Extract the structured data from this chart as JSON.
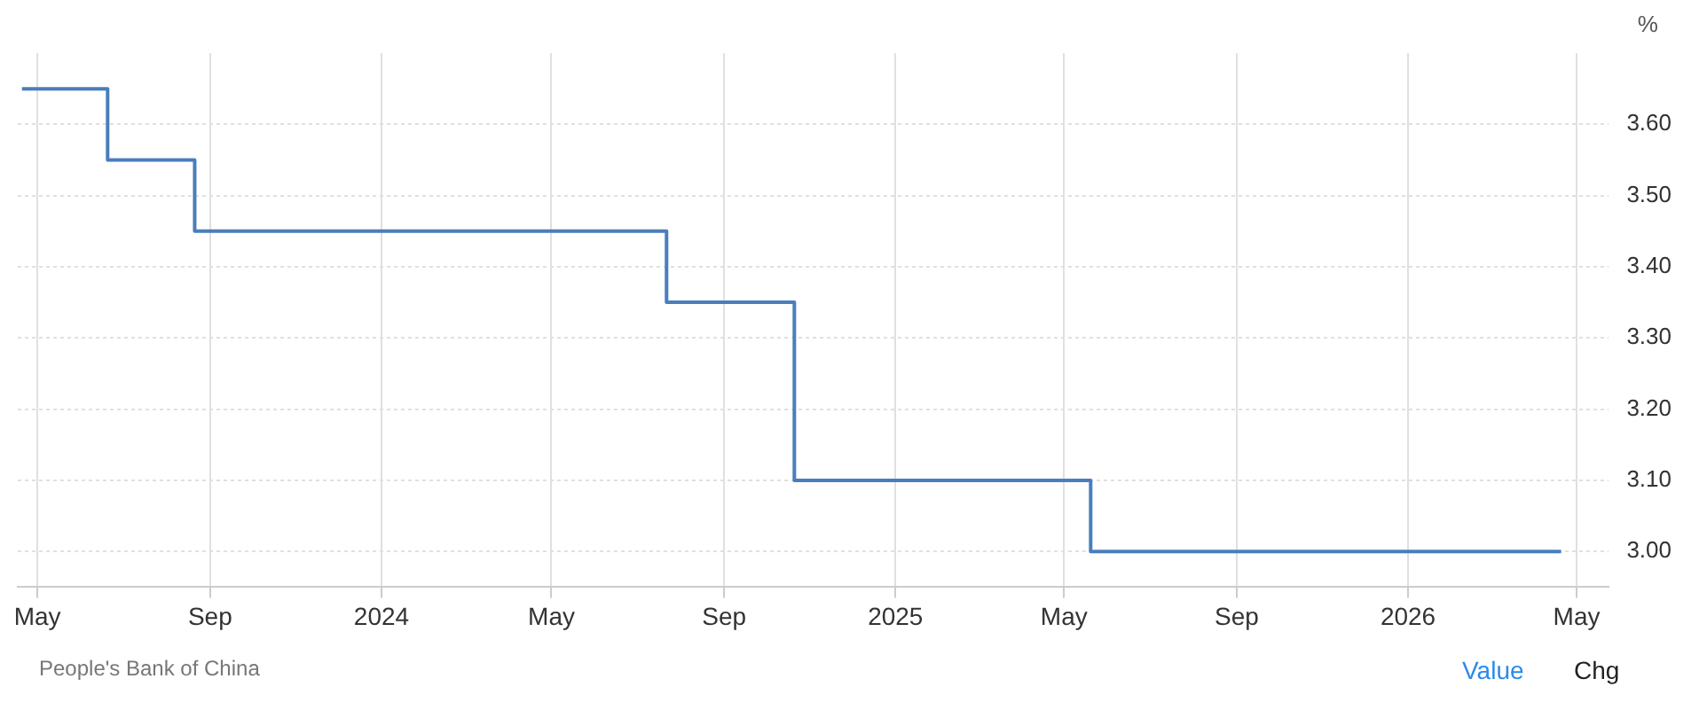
{
  "chart_data": {
    "type": "step",
    "ylabel": "%",
    "x": [
      "2023-04-20",
      "2023-06-20",
      "2023-08-21",
      "2024-07-22",
      "2024-10-21",
      "2025-05-20",
      "2026-04-20"
    ],
    "series": [
      {
        "color": "#4a7ebb",
        "values": [
          3.65,
          3.55,
          3.45,
          3.35,
          3.1,
          3.0,
          3.0
        ]
      }
    ],
    "xlim": [
      "2023-04-17",
      "2026-05-24"
    ],
    "xticks": [
      {
        "value": "2023-05",
        "label": "May"
      },
      {
        "value": "2023-09",
        "label": "Sep"
      },
      {
        "value": "2024-01",
        "label": "2024"
      },
      {
        "value": "2024-05",
        "label": "May"
      },
      {
        "value": "2024-09",
        "label": "Sep"
      },
      {
        "value": "2025-01",
        "label": "2025"
      },
      {
        "value": "2025-05",
        "label": "May"
      },
      {
        "value": "2025-09",
        "label": "Sep"
      },
      {
        "value": "2026-01",
        "label": "2026"
      },
      {
        "value": "2026-05",
        "label": "May"
      }
    ],
    "ylim": [
      2.95,
      3.7
    ],
    "yticks": [
      {
        "value": 3.0,
        "label": "3.00"
      },
      {
        "value": 3.1,
        "label": "3.10"
      },
      {
        "value": 3.2,
        "label": "3.20"
      },
      {
        "value": 3.3,
        "label": "3.30"
      },
      {
        "value": 3.4,
        "label": "3.40"
      },
      {
        "value": 3.5,
        "label": "3.50"
      },
      {
        "value": 3.6,
        "label": "3.60"
      }
    ],
    "grid": true,
    "legend": false,
    "marker": "none",
    "line_style": "solid",
    "annotations": [
      "People's Bank of China",
      "Value",
      "Chg"
    ]
  }
}
